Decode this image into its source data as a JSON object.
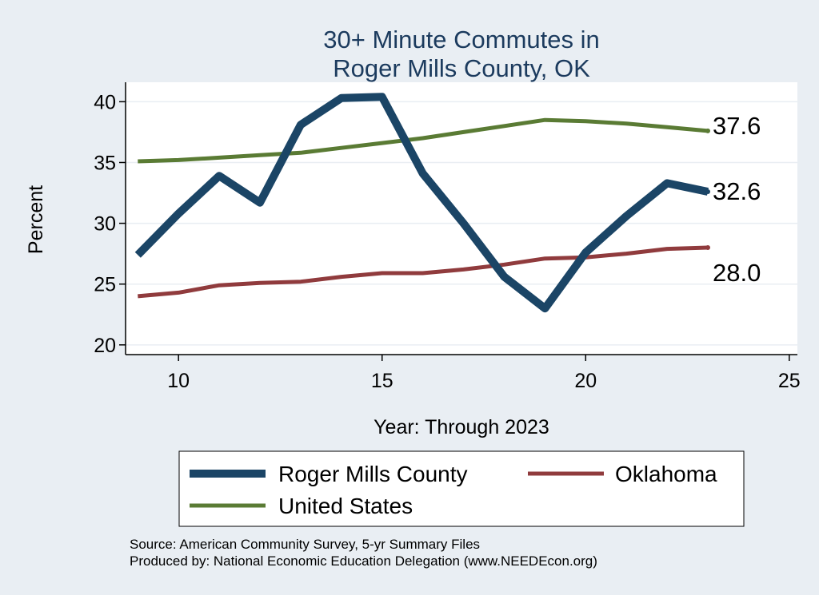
{
  "chart_data": {
    "type": "line",
    "title": [
      "30+ Minute Commutes in",
      "Roger Mills County, OK"
    ],
    "xlabel": "Year: Through 2023",
    "ylabel": "Percent",
    "xlim": [
      8.7,
      25.2
    ],
    "ylim": [
      19.2,
      41.6
    ],
    "xticks": [
      10,
      15,
      20,
      25
    ],
    "yticks": [
      20,
      25,
      30,
      35,
      40
    ],
    "grid": true,
    "legend_position": "bottom",
    "series": [
      {
        "name": "Roger Mills County",
        "color": "#1b4566",
        "width": 10,
        "x": [
          9,
          10,
          11,
          12,
          13,
          14,
          15,
          16,
          17,
          18,
          19,
          20,
          21,
          22,
          23
        ],
        "y": [
          27.4,
          30.8,
          33.9,
          31.7,
          38.1,
          40.3,
          40.4,
          34.1,
          30.0,
          25.6,
          23.0,
          27.6,
          30.6,
          33.3,
          32.6
        ],
        "end_label": "32.6"
      },
      {
        "name": "Oklahoma",
        "color": "#903b3d",
        "width": 5,
        "x": [
          9,
          10,
          11,
          12,
          13,
          14,
          15,
          16,
          17,
          18,
          19,
          20,
          21,
          22,
          23
        ],
        "y": [
          24.0,
          24.3,
          24.9,
          25.1,
          25.2,
          25.6,
          25.9,
          25.9,
          26.2,
          26.6,
          27.1,
          27.2,
          27.5,
          27.9,
          28.0
        ],
        "end_label": "28.0"
      },
      {
        "name": "United States",
        "color": "#5a7b34",
        "width": 5,
        "x": [
          9,
          10,
          11,
          12,
          13,
          14,
          15,
          16,
          17,
          18,
          19,
          20,
          21,
          22,
          23
        ],
        "y": [
          35.1,
          35.2,
          35.4,
          35.6,
          35.8,
          36.2,
          36.6,
          37.0,
          37.5,
          38.0,
          38.5,
          38.4,
          38.2,
          37.9,
          37.6
        ],
        "end_label": "37.6"
      }
    ],
    "notes": [
      "Source: American Community Survey, 5-yr Summary Files",
      "Produced by: National Economic Education Delegation (www.NEEDEcon.org)"
    ]
  }
}
